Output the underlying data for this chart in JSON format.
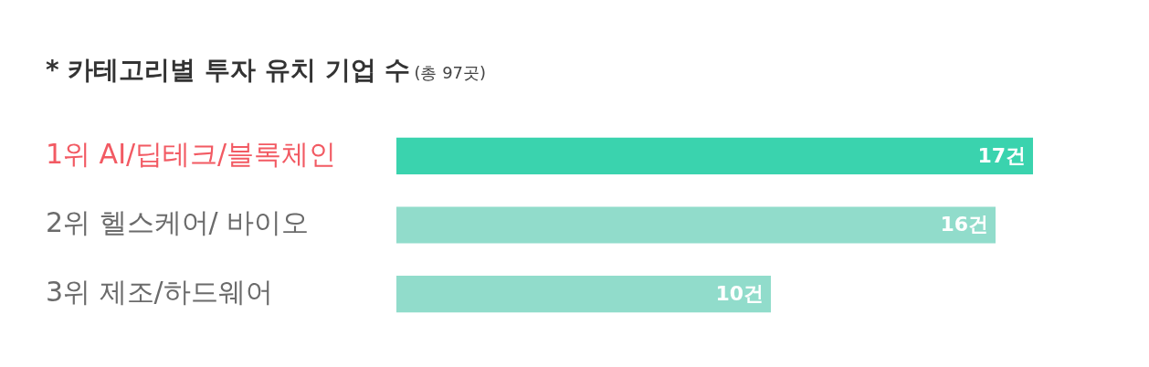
{
  "chart_data": {
    "type": "bar",
    "orientation": "horizontal",
    "title": "* 카테고리별 투자 유치 기업 수",
    "subtitle": "(총 97곳)",
    "categories": [
      "1위 AI/딥테크/블록체인",
      "2위 헬스케어/ 바이오",
      "3위 제조/하드웨어"
    ],
    "values": [
      17,
      16,
      10
    ],
    "colors": [
      "#3ad3ae",
      "#91dccb",
      "#91dccb"
    ],
    "value_labels": [
      "17건",
      "16건",
      "10건"
    ],
    "xlim": [
      0,
      17
    ],
    "legend": false,
    "tick_labels": "y"
  }
}
